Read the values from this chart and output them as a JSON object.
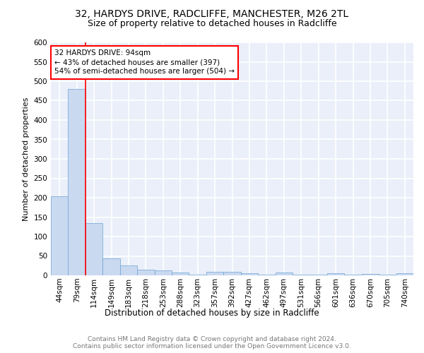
{
  "title1": "32, HARDYS DRIVE, RADCLIFFE, MANCHESTER, M26 2TL",
  "title2": "Size of property relative to detached houses in Radcliffe",
  "xlabel": "Distribution of detached houses by size in Radcliffe",
  "ylabel": "Number of detached properties",
  "footer": "Contains HM Land Registry data © Crown copyright and database right 2024.\nContains public sector information licensed under the Open Government Licence v3.0.",
  "annotation_title": "32 HARDYS DRIVE: 94sqm",
  "annotation_line2": "← 43% of detached houses are smaller (397)",
  "annotation_line3": "54% of semi-detached houses are larger (504) →",
  "bin_labels": [
    "44sqm",
    "79sqm",
    "114sqm",
    "149sqm",
    "183sqm",
    "218sqm",
    "253sqm",
    "288sqm",
    "323sqm",
    "357sqm",
    "392sqm",
    "427sqm",
    "462sqm",
    "497sqm",
    "531sqm",
    "566sqm",
    "601sqm",
    "636sqm",
    "670sqm",
    "705sqm",
    "740sqm"
  ],
  "bar_heights": [
    203,
    480,
    135,
    43,
    25,
    14,
    13,
    8,
    2,
    10,
    10,
    5,
    1,
    7,
    1,
    1,
    5,
    1,
    4,
    1,
    6
  ],
  "bar_color": "#c9d9f0",
  "bar_edge_color": "#6ea3d4",
  "red_line_x": 1.5,
  "ylim": [
    0,
    600
  ],
  "yticks": [
    0,
    50,
    100,
    150,
    200,
    250,
    300,
    350,
    400,
    450,
    500,
    550,
    600
  ],
  "plot_bg_color": "#eaeff9",
  "grid_color": "#ffffff",
  "title1_fontsize": 10,
  "title2_fontsize": 9,
  "ylabel_fontsize": 8,
  "xlabel_fontsize": 8.5,
  "tick_fontsize": 7.5,
  "annot_fontsize": 7.5,
  "footer_fontsize": 6.5
}
